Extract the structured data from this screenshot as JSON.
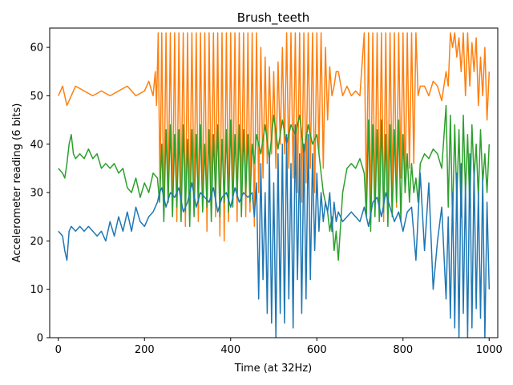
{
  "chart_data": {
    "type": "line",
    "title": "Brush_teeth",
    "xlabel": "Time (at 32Hz)",
    "ylabel": "Accelerometer reading (6 bits)",
    "xlim": [
      -20,
      1020
    ],
    "ylim": [
      0,
      64
    ],
    "xticks": [
      0,
      200,
      400,
      600,
      800,
      1000
    ],
    "yticks": [
      0,
      10,
      20,
      30,
      40,
      50,
      60
    ],
    "grid": false,
    "legend": "none",
    "series": [
      {
        "color": "#ff7f0e",
        "x": [
          0,
          10,
          20,
          30,
          40,
          60,
          80,
          100,
          120,
          140,
          160,
          180,
          200,
          210,
          220,
          225,
          228,
          232,
          236,
          240,
          245,
          250,
          255,
          260,
          265,
          270,
          275,
          280,
          285,
          290,
          295,
          300,
          305,
          310,
          315,
          320,
          325,
          330,
          335,
          340,
          345,
          350,
          355,
          360,
          365,
          370,
          375,
          380,
          385,
          390,
          395,
          400,
          405,
          410,
          415,
          420,
          425,
          430,
          435,
          440,
          445,
          450,
          455,
          460,
          465,
          470,
          475,
          480,
          485,
          490,
          495,
          500,
          505,
          510,
          515,
          520,
          525,
          530,
          535,
          540,
          545,
          550,
          555,
          560,
          565,
          570,
          575,
          580,
          585,
          590,
          595,
          600,
          605,
          610,
          615,
          620,
          625,
          630,
          635,
          640,
          645,
          650,
          660,
          670,
          680,
          690,
          700,
          710,
          715,
          720,
          725,
          730,
          735,
          740,
          745,
          750,
          755,
          760,
          765,
          770,
          775,
          780,
          785,
          790,
          795,
          800,
          805,
          810,
          815,
          820,
          825,
          830,
          835,
          840,
          850,
          860,
          870,
          880,
          890,
          900,
          905,
          910,
          915,
          920,
          925,
          930,
          935,
          940,
          945,
          950,
          955,
          960,
          965,
          970,
          975,
          980,
          985,
          990,
          995,
          1000
        ],
        "y": [
          50,
          52,
          48,
          50,
          52,
          51,
          50,
          51,
          50,
          51,
          52,
          50,
          51,
          53,
          50,
          55,
          48,
          63,
          30,
          63,
          25,
          63,
          28,
          63,
          26,
          63,
          24,
          63,
          27,
          63,
          23,
          63,
          25,
          63,
          28,
          63,
          24,
          63,
          26,
          63,
          22,
          63,
          27,
          63,
          25,
          63,
          21,
          63,
          20,
          63,
          24,
          63,
          28,
          63,
          24,
          63,
          27,
          63,
          25,
          63,
          26,
          63,
          23,
          63,
          30,
          60,
          33,
          58,
          36,
          56,
          38,
          55,
          35,
          57,
          40,
          60,
          38,
          63,
          35,
          63,
          33,
          63,
          30,
          63,
          28,
          63,
          32,
          63,
          35,
          63,
          30,
          63,
          38,
          63,
          35,
          60,
          45,
          56,
          50,
          52,
          55,
          55,
          50,
          52,
          50,
          51,
          50,
          63,
          28,
          63,
          25,
          63,
          27,
          63,
          28,
          63,
          24,
          63,
          26,
          63,
          30,
          63,
          27,
          63,
          33,
          63,
          30,
          63,
          35,
          63,
          36,
          63,
          50,
          52,
          52,
          50,
          53,
          52,
          49,
          55,
          52,
          63,
          60,
          63,
          58,
          62,
          55,
          63,
          50,
          63,
          52,
          61,
          55,
          62,
          48,
          58,
          50,
          60,
          45,
          55
        ]
      },
      {
        "color": "#2ca02c",
        "x": [
          0,
          10,
          15,
          20,
          25,
          30,
          35,
          40,
          50,
          60,
          70,
          80,
          90,
          100,
          110,
          120,
          130,
          140,
          150,
          160,
          170,
          180,
          190,
          200,
          210,
          220,
          230,
          235,
          240,
          245,
          250,
          255,
          260,
          265,
          270,
          275,
          280,
          285,
          290,
          295,
          300,
          305,
          310,
          315,
          320,
          325,
          330,
          335,
          340,
          345,
          350,
          355,
          360,
          365,
          370,
          375,
          380,
          385,
          390,
          395,
          400,
          405,
          410,
          415,
          420,
          425,
          430,
          435,
          440,
          445,
          450,
          455,
          460,
          470,
          480,
          490,
          500,
          510,
          520,
          530,
          540,
          550,
          560,
          570,
          580,
          590,
          600,
          610,
          615,
          620,
          625,
          630,
          635,
          640,
          645,
          650,
          660,
          670,
          680,
          690,
          700,
          710,
          715,
          720,
          725,
          730,
          735,
          740,
          745,
          750,
          755,
          760,
          765,
          770,
          775,
          780,
          785,
          790,
          795,
          800,
          805,
          810,
          815,
          820,
          825,
          830,
          835,
          840,
          850,
          860,
          870,
          880,
          890,
          900,
          905,
          910,
          915,
          920,
          925,
          930,
          935,
          940,
          945,
          950,
          955,
          960,
          965,
          970,
          975,
          980,
          985,
          990,
          995,
          1000
        ],
        "y": [
          35,
          34,
          33,
          36,
          40,
          42,
          38,
          37,
          38,
          37,
          39,
          37,
          38,
          35,
          36,
          35,
          36,
          34,
          35,
          31,
          30,
          33,
          29,
          32,
          30,
          34,
          33,
          28,
          40,
          24,
          43,
          28,
          44,
          25,
          42,
          27,
          43,
          24,
          44,
          26,
          41,
          23,
          43,
          25,
          42,
          28,
          44,
          26,
          40,
          27,
          43,
          24,
          42,
          29,
          44,
          25,
          41,
          28,
          43,
          26,
          45,
          27,
          42,
          29,
          44,
          25,
          43,
          30,
          42,
          28,
          40,
          36,
          42,
          38,
          44,
          37,
          46,
          39,
          45,
          40,
          44,
          42,
          46,
          38,
          44,
          40,
          42,
          34,
          30,
          28,
          26,
          22,
          25,
          18,
          22,
          16,
          30,
          35,
          36,
          35,
          37,
          34,
          25,
          45,
          22,
          44,
          25,
          43,
          24,
          45,
          26,
          42,
          23,
          44,
          25,
          43,
          28,
          45,
          24,
          42,
          30,
          38,
          28,
          36,
          30,
          33,
          28,
          36,
          38,
          37,
          39,
          38,
          35,
          48,
          27,
          46,
          24,
          44,
          28,
          43,
          25,
          46,
          30,
          42,
          27,
          44,
          33,
          40,
          29,
          43,
          32,
          38,
          30,
          40
        ]
      },
      {
        "color": "#1f77b4",
        "x": [
          0,
          10,
          15,
          20,
          25,
          30,
          40,
          50,
          60,
          70,
          80,
          90,
          100,
          110,
          120,
          130,
          140,
          150,
          160,
          170,
          180,
          190,
          200,
          210,
          220,
          230,
          235,
          240,
          250,
          260,
          270,
          280,
          290,
          300,
          310,
          320,
          330,
          340,
          350,
          360,
          370,
          380,
          390,
          400,
          410,
          420,
          430,
          440,
          450,
          455,
          460,
          465,
          470,
          475,
          480,
          485,
          490,
          495,
          500,
          505,
          510,
          515,
          520,
          525,
          530,
          535,
          540,
          545,
          550,
          555,
          560,
          565,
          570,
          575,
          580,
          585,
          590,
          595,
          600,
          605,
          610,
          615,
          620,
          625,
          630,
          635,
          640,
          645,
          650,
          660,
          670,
          680,
          690,
          700,
          710,
          720,
          730,
          740,
          750,
          760,
          770,
          780,
          790,
          800,
          810,
          820,
          830,
          840,
          850,
          860,
          870,
          880,
          890,
          900,
          905,
          910,
          915,
          920,
          925,
          930,
          935,
          940,
          945,
          950,
          955,
          960,
          965,
          970,
          975,
          980,
          985,
          990,
          995,
          1000
        ],
        "y": [
          22,
          21,
          18,
          16,
          22,
          23,
          22,
          23,
          22,
          23,
          22,
          21,
          22,
          20,
          24,
          21,
          25,
          22,
          26,
          22,
          27,
          24,
          23,
          25,
          26,
          28,
          30,
          31,
          27,
          30,
          29,
          31,
          26,
          28,
          32,
          27,
          30,
          29,
          28,
          31,
          26,
          29,
          30,
          27,
          31,
          28,
          30,
          29,
          30,
          25,
          32,
          8,
          36,
          12,
          30,
          5,
          38,
          3,
          32,
          0,
          38,
          5,
          40,
          3,
          42,
          8,
          36,
          2,
          44,
          12,
          38,
          5,
          40,
          8,
          42,
          12,
          38,
          18,
          34,
          22,
          30,
          24,
          28,
          26,
          30,
          22,
          28,
          24,
          26,
          24,
          25,
          26,
          25,
          24,
          27,
          23,
          28,
          29,
          25,
          30,
          27,
          24,
          26,
          22,
          26,
          27,
          16,
          34,
          18,
          32,
          10,
          20,
          27,
          8,
          25,
          4,
          30,
          2,
          34,
          0,
          36,
          5,
          32,
          0,
          38,
          2,
          35,
          6,
          30,
          4,
          33,
          0,
          28,
          10
        ]
      }
    ]
  }
}
